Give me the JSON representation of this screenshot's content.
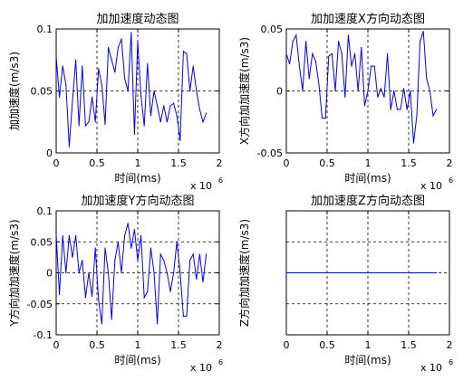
{
  "chart_data": [
    {
      "type": "line",
      "title": "加加速度动态图",
      "xlabel": "时间(ms)",
      "ylabel": "加加速度(m/s3)",
      "x_exponent_base": "x 10",
      "x_exponent_power": "6",
      "xlim": [
        0,
        2
      ],
      "ylim": [
        0,
        0.1
      ],
      "xticks": [
        "0",
        "0.5",
        "1",
        "1.5",
        "2"
      ],
      "yticks": [
        "0",
        "0.05",
        "0.1"
      ],
      "grid": true,
      "series_color": "#0000ff",
      "x": [
        0.0,
        0.04,
        0.08,
        0.12,
        0.16,
        0.2,
        0.24,
        0.28,
        0.32,
        0.36,
        0.4,
        0.44,
        0.48,
        0.52,
        0.56,
        0.6,
        0.64,
        0.68,
        0.72,
        0.76,
        0.8,
        0.84,
        0.88,
        0.92,
        0.96,
        1.0,
        1.04,
        1.08,
        1.12,
        1.16,
        1.2,
        1.24,
        1.28,
        1.32,
        1.36,
        1.4,
        1.44,
        1.48,
        1.52,
        1.56,
        1.6,
        1.64,
        1.68,
        1.72,
        1.76,
        1.8,
        1.84
      ],
      "values": [
        0.078,
        0.045,
        0.07,
        0.055,
        0.005,
        0.042,
        0.075,
        0.022,
        0.07,
        0.022,
        0.025,
        0.045,
        0.025,
        0.068,
        0.055,
        0.023,
        0.085,
        0.075,
        0.065,
        0.085,
        0.092,
        0.06,
        0.05,
        0.097,
        0.015,
        0.09,
        0.046,
        0.022,
        0.072,
        0.03,
        0.05,
        0.038,
        0.025,
        0.038,
        0.025,
        0.038,
        0.04,
        0.03,
        0.01,
        0.082,
        0.08,
        0.05,
        0.07,
        0.05,
        0.035,
        0.025,
        0.032
      ]
    },
    {
      "type": "line",
      "title": "加加速度X方向动态图",
      "xlabel": "时间(ms)",
      "ylabel": "X方向加加速度(m/s3)",
      "x_exponent_base": "x 10",
      "x_exponent_power": "6",
      "xlim": [
        0,
        2
      ],
      "ylim": [
        -0.05,
        0.05
      ],
      "xticks": [
        "0",
        "0.5",
        "1",
        "1.5",
        "2"
      ],
      "yticks": [
        "-0.05",
        "0",
        "0.05"
      ],
      "grid": true,
      "series_color": "#0000ff",
      "x": [
        0.0,
        0.04,
        0.08,
        0.12,
        0.16,
        0.2,
        0.24,
        0.28,
        0.32,
        0.36,
        0.4,
        0.44,
        0.48,
        0.52,
        0.56,
        0.6,
        0.64,
        0.68,
        0.72,
        0.76,
        0.8,
        0.84,
        0.88,
        0.92,
        0.96,
        1.0,
        1.04,
        1.08,
        1.12,
        1.16,
        1.2,
        1.24,
        1.28,
        1.32,
        1.36,
        1.4,
        1.44,
        1.48,
        1.52,
        1.56,
        1.6,
        1.64,
        1.68,
        1.72,
        1.76,
        1.8,
        1.84
      ],
      "values": [
        0.03,
        0.022,
        0.04,
        0.045,
        0.02,
        0.0,
        0.04,
        0.01,
        0.03,
        0.024,
        0.005,
        -0.022,
        -0.022,
        0.028,
        0.03,
        0.0,
        0.04,
        0.03,
        -0.005,
        0.045,
        0.02,
        0.03,
        0.0,
        0.035,
        -0.012,
        0.0,
        0.02,
        0.02,
        -0.005,
        0.002,
        -0.005,
        0.03,
        -0.015,
        0.0,
        -0.015,
        -0.015,
        0.002,
        -0.015,
        0.0,
        -0.042,
        -0.02,
        0.04,
        0.048,
        0.01,
        0.0,
        -0.02,
        -0.015
      ]
    },
    {
      "type": "line",
      "title": "加加速度Y方向动态图",
      "xlabel": "时间(ms)",
      "ylabel": "Y方向加加速度(m/s3)",
      "x_exponent_base": "x 10",
      "x_exponent_power": "6",
      "xlim": [
        0,
        2
      ],
      "ylim": [
        -0.1,
        0.1
      ],
      "xticks": [
        "0",
        "0.5",
        "1",
        "1.5",
        "2"
      ],
      "yticks": [
        "-0.1",
        "-0.05",
        "0",
        "0.05",
        "0.1"
      ],
      "grid": true,
      "series_color": "#0000ff",
      "x": [
        0.0,
        0.04,
        0.08,
        0.12,
        0.16,
        0.2,
        0.24,
        0.28,
        0.32,
        0.36,
        0.4,
        0.44,
        0.48,
        0.52,
        0.56,
        0.6,
        0.64,
        0.68,
        0.72,
        0.76,
        0.8,
        0.84,
        0.88,
        0.92,
        0.96,
        1.0,
        1.04,
        1.08,
        1.12,
        1.16,
        1.2,
        1.24,
        1.28,
        1.32,
        1.36,
        1.4,
        1.44,
        1.48,
        1.52,
        1.56,
        1.6,
        1.64,
        1.68,
        1.72,
        1.76,
        1.8,
        1.84
      ],
      "values": [
        0.062,
        -0.035,
        0.06,
        0.0,
        0.06,
        0.025,
        0.06,
        0.0,
        0.02,
        -0.04,
        0.0,
        -0.038,
        0.04,
        -0.045,
        -0.082,
        0.04,
        0.0,
        -0.075,
        0.02,
        0.05,
        0.0,
        0.06,
        0.08,
        0.04,
        0.07,
        0.02,
        0.06,
        -0.04,
        -0.03,
        0.04,
        0.0,
        -0.082,
        0.03,
        0.02,
        0.0,
        -0.03,
        0.0,
        0.05,
        0.0,
        -0.07,
        -0.07,
        0.02,
        0.03,
        -0.01,
        0.03,
        -0.015,
        0.03
      ]
    },
    {
      "type": "line",
      "title": "加加速度Z方向动态图",
      "xlabel": "时间(ms)",
      "ylabel": "Z方向加加速度(m/s3)",
      "x_exponent_base": "x 10",
      "x_exponent_power": "6",
      "xlim": [
        0,
        2
      ],
      "ylim": [
        -1,
        1
      ],
      "xticks": [
        "0",
        "0.5",
        "1",
        "1.5",
        "2"
      ],
      "yticks": [],
      "grid": true,
      "series_color": "#0000ff",
      "x": [
        0.0,
        1.84
      ],
      "values": [
        0,
        0
      ]
    }
  ]
}
